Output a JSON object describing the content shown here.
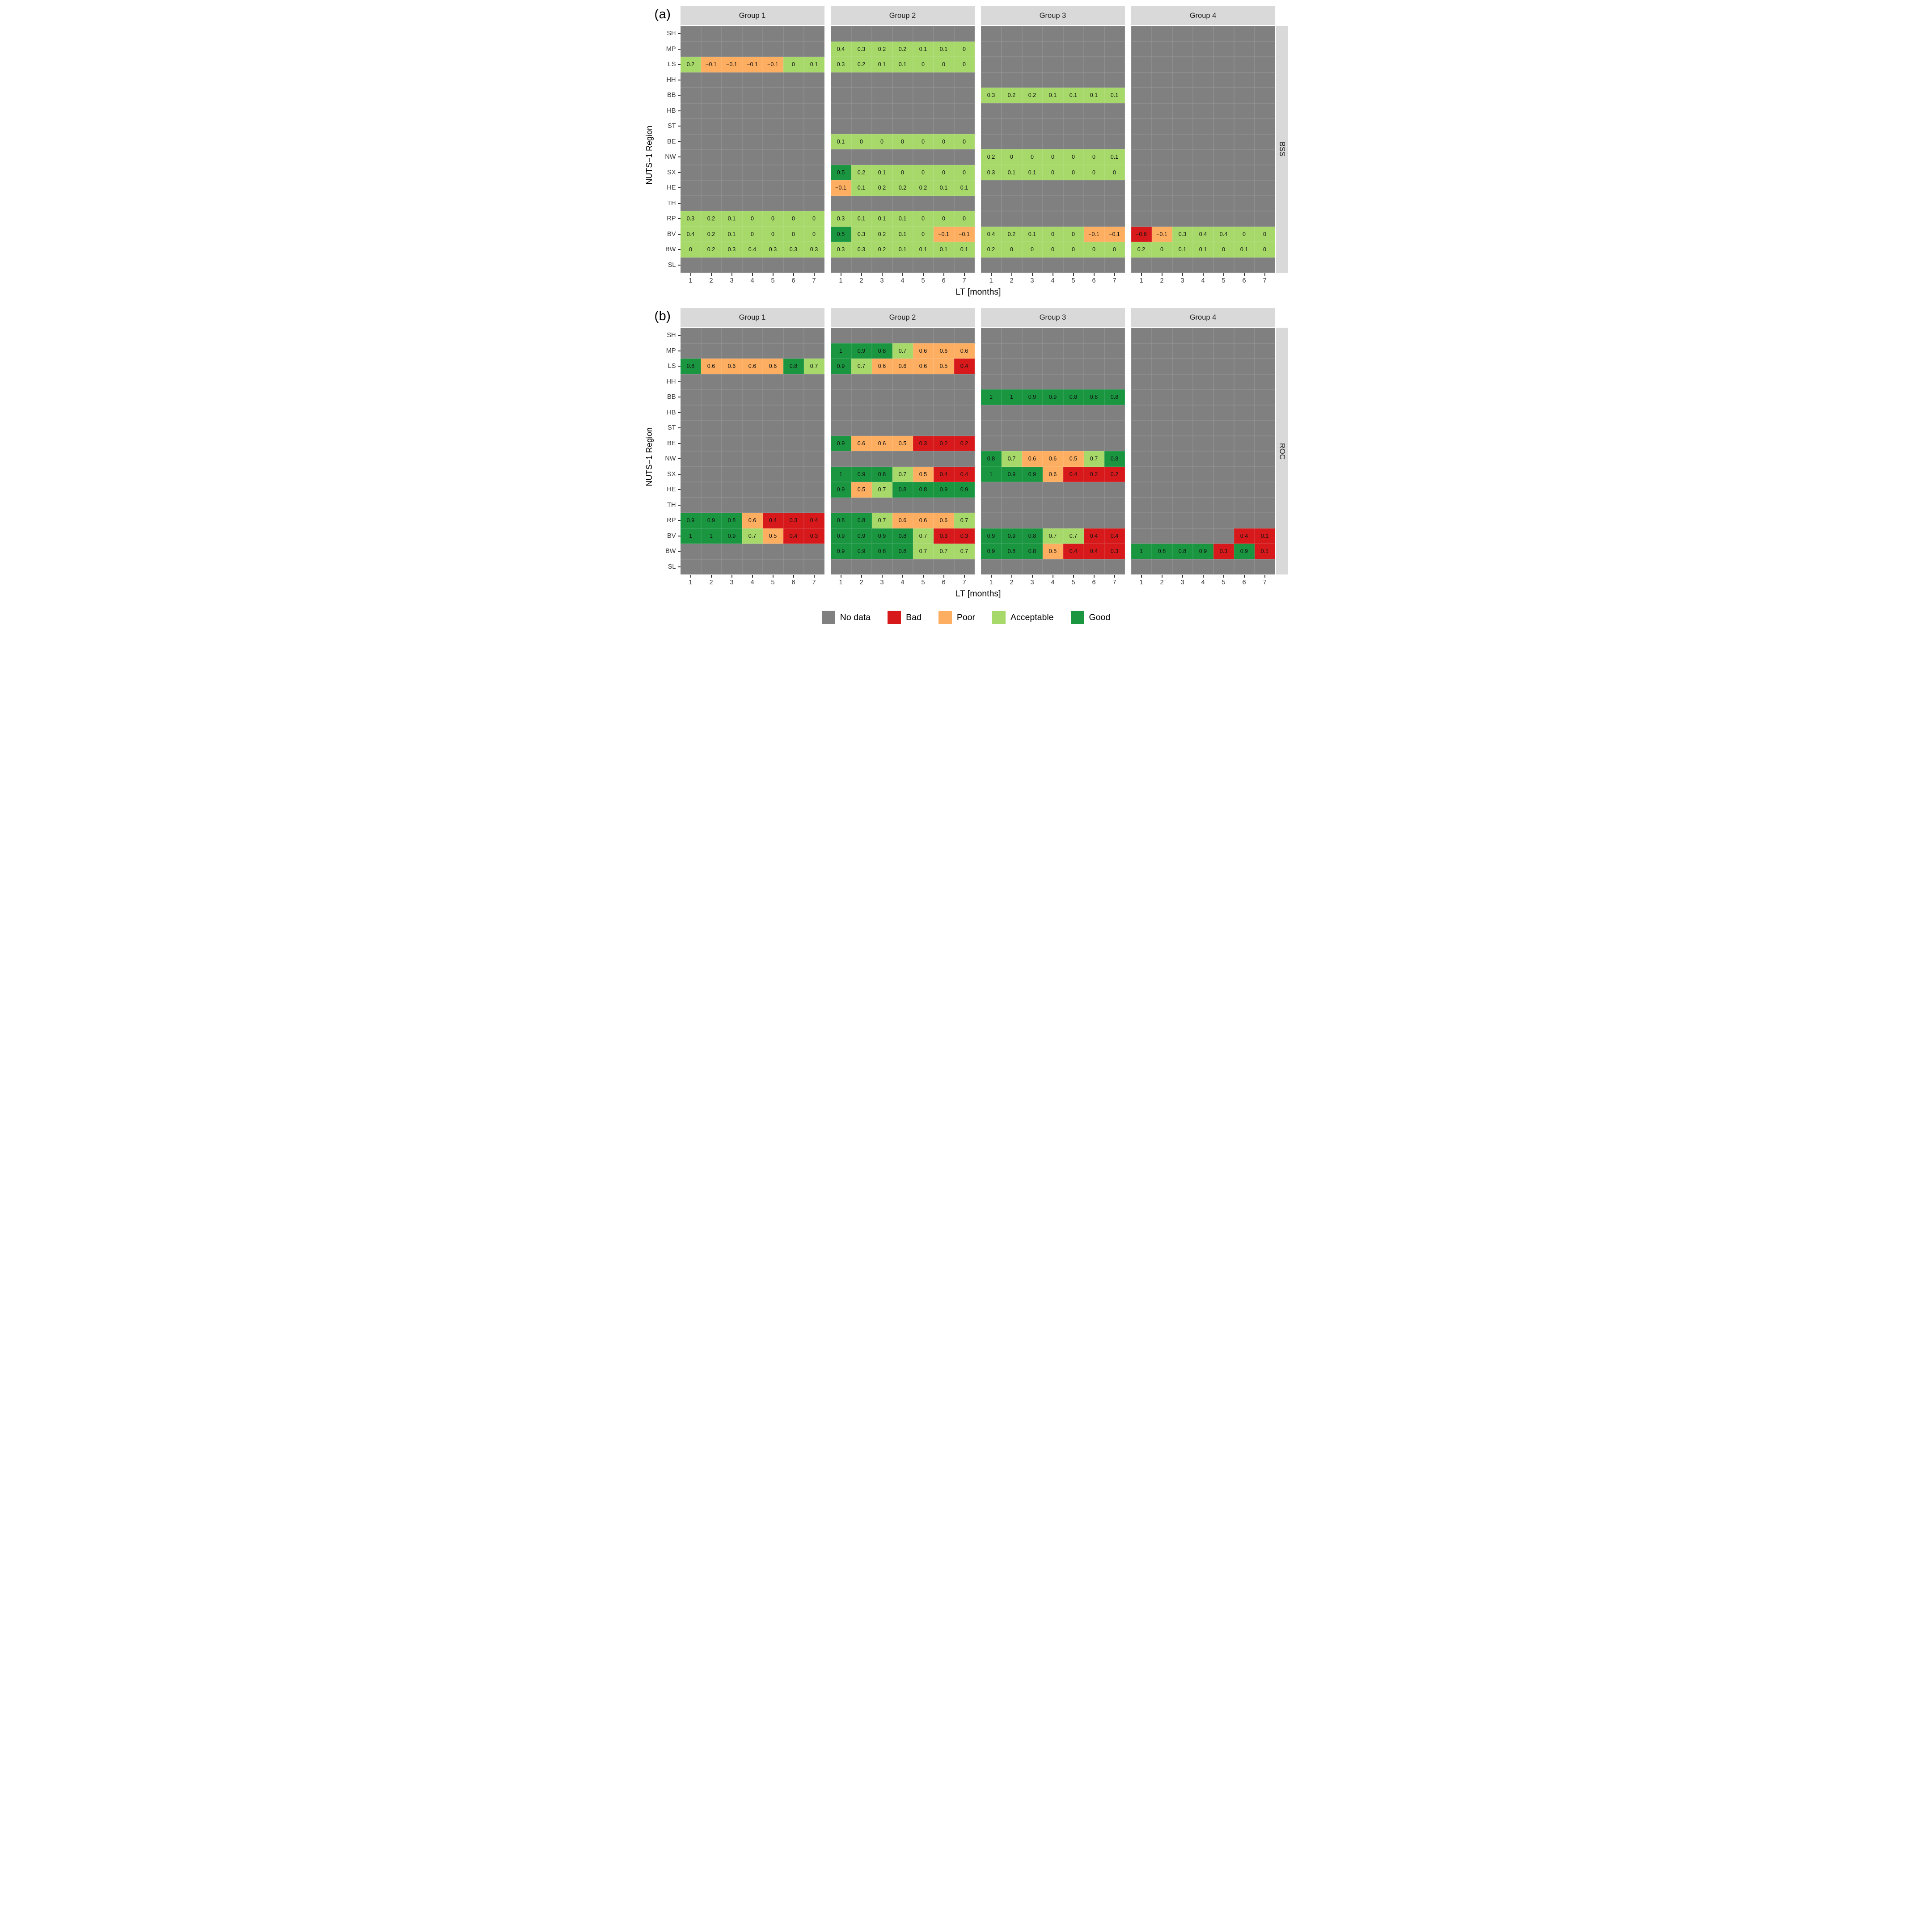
{
  "chart_data": {
    "type": "heatmap",
    "x": [
      "1",
      "2",
      "3",
      "4",
      "5",
      "6",
      "7"
    ],
    "xlabel": "LT [months]",
    "ylabel": "NUTS−1 Region",
    "regions": [
      "SH",
      "MP",
      "LS",
      "HH",
      "BB",
      "HB",
      "ST",
      "BE",
      "NW",
      "SX",
      "HE",
      "TH",
      "RP",
      "BV",
      "BW",
      "SL"
    ],
    "categories": {
      "N": "No data",
      "B": "Bad",
      "P": "Poor",
      "A": "Acceptable",
      "G": "Good"
    },
    "colors": {
      "N": "#808080",
      "B": "#d7191c",
      "P": "#fdae61",
      "A": "#a6d96a",
      "G": "#1a9641"
    },
    "legend": [
      {
        "key": "N",
        "label": "No data"
      },
      {
        "key": "B",
        "label": "Bad"
      },
      {
        "key": "P",
        "label": "Poor"
      },
      {
        "key": "A",
        "label": "Acceptable"
      },
      {
        "key": "G",
        "label": "Good"
      }
    ],
    "panels": [
      {
        "tag": "(a)",
        "metric": "BSS",
        "groups": [
          {
            "label": "Group 1",
            "rows": [
              {
                "region": "LS",
                "v": [
                  "0.2",
                  "−0.1",
                  "−0.1",
                  "−0.1",
                  "−0.1",
                  "0",
                  "0.1"
                ],
                "c": [
                  "A",
                  "P",
                  "P",
                  "P",
                  "P",
                  "A",
                  "A"
                ]
              },
              {
                "region": "RP",
                "v": [
                  "0.3",
                  "0.2",
                  "0.1",
                  "0",
                  "0",
                  "0",
                  "0"
                ],
                "c": [
                  "A",
                  "A",
                  "A",
                  "A",
                  "A",
                  "A",
                  "A"
                ]
              },
              {
                "region": "BV",
                "v": [
                  "0.4",
                  "0.2",
                  "0.1",
                  "0",
                  "0",
                  "0",
                  "0"
                ],
                "c": [
                  "A",
                  "A",
                  "A",
                  "A",
                  "A",
                  "A",
                  "A"
                ]
              },
              {
                "region": "BW",
                "v": [
                  "0",
                  "0.2",
                  "0.3",
                  "0.4",
                  "0.3",
                  "0.3",
                  "0.3"
                ],
                "c": [
                  "A",
                  "A",
                  "A",
                  "A",
                  "A",
                  "A",
                  "A"
                ]
              }
            ]
          },
          {
            "label": "Group 2",
            "rows": [
              {
                "region": "MP",
                "v": [
                  "0.4",
                  "0.3",
                  "0.2",
                  "0.2",
                  "0.1",
                  "0.1",
                  "0"
                ],
                "c": [
                  "A",
                  "A",
                  "A",
                  "A",
                  "A",
                  "A",
                  "A"
                ]
              },
              {
                "region": "LS",
                "v": [
                  "0.3",
                  "0.2",
                  "0.1",
                  "0.1",
                  "0",
                  "0",
                  "0"
                ],
                "c": [
                  "A",
                  "A",
                  "A",
                  "A",
                  "A",
                  "A",
                  "A"
                ]
              },
              {
                "region": "BE",
                "v": [
                  "0.1",
                  "0",
                  "0",
                  "0",
                  "0",
                  "0",
                  "0"
                ],
                "c": [
                  "A",
                  "A",
                  "A",
                  "A",
                  "A",
                  "A",
                  "A"
                ]
              },
              {
                "region": "SX",
                "v": [
                  "0.5",
                  "0.2",
                  "0.1",
                  "0",
                  "0",
                  "0",
                  "0"
                ],
                "c": [
                  "G",
                  "A",
                  "A",
                  "A",
                  "A",
                  "A",
                  "A"
                ]
              },
              {
                "region": "HE",
                "v": [
                  "−0.1",
                  "0.1",
                  "0.2",
                  "0.2",
                  "0.2",
                  "0.1",
                  "0.1"
                ],
                "c": [
                  "P",
                  "A",
                  "A",
                  "A",
                  "A",
                  "A",
                  "A"
                ]
              },
              {
                "region": "RP",
                "v": [
                  "0.3",
                  "0.1",
                  "0.1",
                  "0.1",
                  "0",
                  "0",
                  "0"
                ],
                "c": [
                  "A",
                  "A",
                  "A",
                  "A",
                  "A",
                  "A",
                  "A"
                ]
              },
              {
                "region": "BV",
                "v": [
                  "0.5",
                  "0.3",
                  "0.2",
                  "0.1",
                  "0",
                  "−0.1",
                  "−0.1"
                ],
                "c": [
                  "G",
                  "A",
                  "A",
                  "A",
                  "A",
                  "P",
                  "P"
                ]
              },
              {
                "region": "BW",
                "v": [
                  "0.3",
                  "0.3",
                  "0.2",
                  "0.1",
                  "0.1",
                  "0.1",
                  "0.1"
                ],
                "c": [
                  "A",
                  "A",
                  "A",
                  "A",
                  "A",
                  "A",
                  "A"
                ]
              }
            ]
          },
          {
            "label": "Group 3",
            "rows": [
              {
                "region": "BB",
                "v": [
                  "0.3",
                  "0.2",
                  "0.2",
                  "0.1",
                  "0.1",
                  "0.1",
                  "0.1"
                ],
                "c": [
                  "A",
                  "A",
                  "A",
                  "A",
                  "A",
                  "A",
                  "A"
                ]
              },
              {
                "region": "NW",
                "v": [
                  "0.2",
                  "0",
                  "0",
                  "0",
                  "0",
                  "0",
                  "0.1"
                ],
                "c": [
                  "A",
                  "A",
                  "A",
                  "A",
                  "A",
                  "A",
                  "A"
                ]
              },
              {
                "region": "SX",
                "v": [
                  "0.3",
                  "0.1",
                  "0.1",
                  "0",
                  "0",
                  "0",
                  "0"
                ],
                "c": [
                  "A",
                  "A",
                  "A",
                  "A",
                  "A",
                  "A",
                  "A"
                ]
              },
              {
                "region": "BV",
                "v": [
                  "0.4",
                  "0.2",
                  "0.1",
                  "0",
                  "0",
                  "−0.1",
                  "−0.1"
                ],
                "c": [
                  "A",
                  "A",
                  "A",
                  "A",
                  "A",
                  "P",
                  "P"
                ]
              },
              {
                "region": "BW",
                "v": [
                  "0.2",
                  "0",
                  "0",
                  "0",
                  "0",
                  "0",
                  "0"
                ],
                "c": [
                  "A",
                  "A",
                  "A",
                  "A",
                  "A",
                  "A",
                  "A"
                ]
              }
            ]
          },
          {
            "label": "Group 4",
            "rows": [
              {
                "region": "BV",
                "v": [
                  "−0.6",
                  "−0.1",
                  "0.3",
                  "0.4",
                  "0.4",
                  "0",
                  "0"
                ],
                "c": [
                  "B",
                  "P",
                  "A",
                  "A",
                  "A",
                  "A",
                  "A"
                ]
              },
              {
                "region": "BW",
                "v": [
                  "0.2",
                  "0",
                  "0.1",
                  "0.1",
                  "0",
                  "0.1",
                  "0"
                ],
                "c": [
                  "A",
                  "A",
                  "A",
                  "A",
                  "A",
                  "A",
                  "A"
                ]
              }
            ]
          }
        ]
      },
      {
        "tag": "(b)",
        "metric": "ROC",
        "groups": [
          {
            "label": "Group 1",
            "rows": [
              {
                "region": "LS",
                "v": [
                  "0.8",
                  "0.6",
                  "0.6",
                  "0.6",
                  "0.6",
                  "0.8",
                  "0.7"
                ],
                "c": [
                  "G",
                  "P",
                  "P",
                  "P",
                  "P",
                  "G",
                  "A"
                ]
              },
              {
                "region": "RP",
                "v": [
                  "0.9",
                  "0.9",
                  "0.8",
                  "0.6",
                  "0.4",
                  "0.3",
                  "0.4"
                ],
                "c": [
                  "G",
                  "G",
                  "G",
                  "P",
                  "B",
                  "B",
                  "B"
                ]
              },
              {
                "region": "BV",
                "v": [
                  "1",
                  "1",
                  "0.9",
                  "0.7",
                  "0.5",
                  "0.4",
                  "0.3"
                ],
                "c": [
                  "G",
                  "G",
                  "G",
                  "A",
                  "P",
                  "B",
                  "B"
                ]
              }
            ]
          },
          {
            "label": "Group 2",
            "rows": [
              {
                "region": "MP",
                "v": [
                  "1",
                  "0.9",
                  "0.8",
                  "0.7",
                  "0.6",
                  "0.6",
                  "0.6"
                ],
                "c": [
                  "G",
                  "G",
                  "G",
                  "A",
                  "P",
                  "P",
                  "P"
                ]
              },
              {
                "region": "LS",
                "v": [
                  "0.9",
                  "0.7",
                  "0.6",
                  "0.6",
                  "0.6",
                  "0.5",
                  "0.4"
                ],
                "c": [
                  "G",
                  "A",
                  "P",
                  "P",
                  "P",
                  "P",
                  "B"
                ]
              },
              {
                "region": "BE",
                "v": [
                  "0.9",
                  "0.6",
                  "0.6",
                  "0.5",
                  "0.3",
                  "0.2",
                  "0.2"
                ],
                "c": [
                  "G",
                  "P",
                  "P",
                  "P",
                  "B",
                  "B",
                  "B"
                ]
              },
              {
                "region": "SX",
                "v": [
                  "1",
                  "0.9",
                  "0.8",
                  "0.7",
                  "0.5",
                  "0.4",
                  "0.4"
                ],
                "c": [
                  "G",
                  "G",
                  "G",
                  "A",
                  "P",
                  "B",
                  "B"
                ]
              },
              {
                "region": "HE",
                "v": [
                  "0.9",
                  "0.5",
                  "0.7",
                  "0.8",
                  "0.8",
                  "0.9",
                  "0.9"
                ],
                "c": [
                  "G",
                  "P",
                  "A",
                  "G",
                  "G",
                  "G",
                  "G"
                ]
              },
              {
                "region": "RP",
                "v": [
                  "0.8",
                  "0.8",
                  "0.7",
                  "0.6",
                  "0.6",
                  "0.6",
                  "0.7"
                ],
                "c": [
                  "G",
                  "G",
                  "A",
                  "P",
                  "P",
                  "P",
                  "A"
                ]
              },
              {
                "region": "BV",
                "v": [
                  "0.9",
                  "0.9",
                  "0.9",
                  "0.8",
                  "0.7",
                  "0.3",
                  "0.3"
                ],
                "c": [
                  "G",
                  "G",
                  "G",
                  "G",
                  "A",
                  "B",
                  "B"
                ]
              },
              {
                "region": "BW",
                "v": [
                  "0.9",
                  "0.9",
                  "0.8",
                  "0.8",
                  "0.7",
                  "0.7",
                  "0.7"
                ],
                "c": [
                  "G",
                  "G",
                  "G",
                  "G",
                  "A",
                  "A",
                  "A"
                ]
              }
            ]
          },
          {
            "label": "Group 3",
            "rows": [
              {
                "region": "BB",
                "v": [
                  "1",
                  "1",
                  "0.9",
                  "0.9",
                  "0.8",
                  "0.8",
                  "0.8"
                ],
                "c": [
                  "G",
                  "G",
                  "G",
                  "G",
                  "G",
                  "G",
                  "G"
                ]
              },
              {
                "region": "NW",
                "v": [
                  "0.8",
                  "0.7",
                  "0.6",
                  "0.6",
                  "0.5",
                  "0.7",
                  "0.8"
                ],
                "c": [
                  "G",
                  "A",
                  "P",
                  "P",
                  "P",
                  "A",
                  "G"
                ]
              },
              {
                "region": "SX",
                "v": [
                  "1",
                  "0.9",
                  "0.9",
                  "0.6",
                  "0.4",
                  "0.2",
                  "0.2"
                ],
                "c": [
                  "G",
                  "G",
                  "G",
                  "P",
                  "B",
                  "B",
                  "B"
                ]
              },
              {
                "region": "BV",
                "v": [
                  "0.9",
                  "0.9",
                  "0.8",
                  "0.7",
                  "0.7",
                  "0.4",
                  "0.4"
                ],
                "c": [
                  "G",
                  "G",
                  "G",
                  "A",
                  "A",
                  "B",
                  "B"
                ]
              },
              {
                "region": "BW",
                "v": [
                  "0.9",
                  "0.8",
                  "0.8",
                  "0.5",
                  "0.4",
                  "0.4",
                  "0.3"
                ],
                "c": [
                  "G",
                  "G",
                  "G",
                  "P",
                  "B",
                  "B",
                  "B"
                ]
              }
            ]
          },
          {
            "label": "Group 4",
            "rows": [
              {
                "region": "BV",
                "v": [
                  null,
                  null,
                  null,
                  null,
                  null,
                  "0.4",
                  "0.1"
                ],
                "c": [
                  "N",
                  "N",
                  "N",
                  "N",
                  "N",
                  "B",
                  "B"
                ]
              },
              {
                "region": "BW",
                "v": [
                  "1",
                  "0.8",
                  "0.8",
                  "0.9",
                  "0.3",
                  "0.9",
                  "0.1"
                ],
                "c": [
                  "G",
                  "G",
                  "G",
                  "G",
                  "B",
                  "G",
                  "B"
                ]
              }
            ]
          }
        ]
      }
    ]
  }
}
